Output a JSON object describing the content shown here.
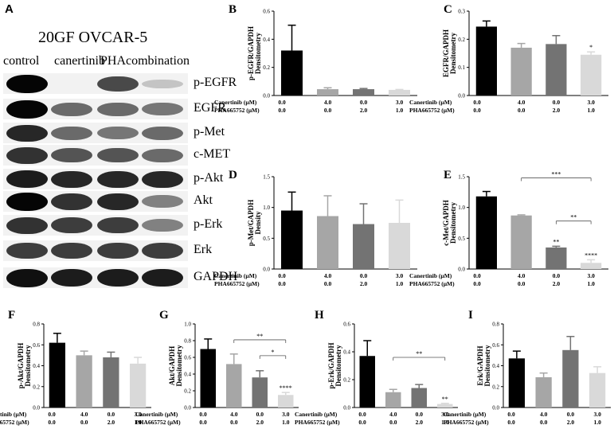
{
  "blot": {
    "letter": "A",
    "title": "20GF OVCAR-5",
    "lanes": [
      "control",
      "canertinib",
      "PHA",
      "combination"
    ],
    "rows": [
      {
        "label": "p-EGFR",
        "intensity": [
          1.0,
          0.0,
          0.7,
          0.15
        ]
      },
      {
        "label": "EGFR",
        "intensity": [
          1.0,
          0.55,
          0.55,
          0.5
        ]
      },
      {
        "label": "p-Met",
        "intensity": [
          0.85,
          0.55,
          0.5,
          0.55
        ]
      },
      {
        "label": "c-MET",
        "intensity": [
          0.8,
          0.65,
          0.65,
          0.55
        ]
      },
      {
        "label": "p-Akt",
        "intensity": [
          0.9,
          0.85,
          0.85,
          0.85
        ]
      },
      {
        "label": "Akt",
        "intensity": [
          1.0,
          0.8,
          0.85,
          0.45
        ]
      },
      {
        "label": "p-Erk",
        "intensity": [
          0.8,
          0.75,
          0.75,
          0.45
        ]
      },
      {
        "label": "Erk",
        "intensity": [
          0.75,
          0.75,
          0.75,
          0.75
        ]
      },
      {
        "label": "GAPDH",
        "intensity": [
          0.95,
          0.9,
          0.9,
          0.9
        ]
      }
    ]
  },
  "colors": [
    "#000000",
    "#a6a6a6",
    "#737373",
    "#d9d9d9"
  ],
  "conditions": {
    "row1_label": "Canertinib  (µM)",
    "row2_label": "PHA665752 (µM)",
    "row1_values": [
      "0.0",
      "4.0",
      "0.0",
      "3.0"
    ],
    "row2_values": [
      "0.0",
      "0.0",
      "2.0",
      "1.0"
    ]
  },
  "chart_data": [
    {
      "letter": "B",
      "type": "bar",
      "ylabel": "p-EGFR/GAPDH Densitometry",
      "ylim": [
        0,
        0.6
      ],
      "yticks": [
        "0.0",
        "0.2",
        "0.4",
        "0.6"
      ],
      "values": [
        0.32,
        0.045,
        0.045,
        0.04
      ],
      "errors": [
        0.18,
        0.01,
        0.005,
        0.003
      ],
      "sig": [],
      "brackets": []
    },
    {
      "letter": "C",
      "type": "bar",
      "ylabel": "EGFR/GAPDH Densitometry",
      "ylim": [
        0,
        0.3
      ],
      "yticks": [
        "0.0",
        "0.1",
        "0.2",
        "0.3"
      ],
      "values": [
        0.245,
        0.17,
        0.183,
        0.145
      ],
      "errors": [
        0.02,
        0.015,
        0.03,
        0.01
      ],
      "sig": [
        {
          "bar": 3,
          "text": "*"
        }
      ],
      "brackets": []
    },
    {
      "letter": "D",
      "type": "bar",
      "ylabel": "p-Met/GAPDH Density",
      "ylim": [
        0,
        1.5
      ],
      "yticks": [
        "0.0",
        "0.5",
        "1.0",
        "1.5"
      ],
      "values": [
        0.95,
        0.86,
        0.73,
        0.75
      ],
      "errors": [
        0.3,
        0.33,
        0.33,
        0.37
      ],
      "sig": [],
      "brackets": []
    },
    {
      "letter": "E",
      "type": "bar",
      "ylabel": "c-Met/GAPDH Densitometry",
      "ylim": [
        0,
        1.5
      ],
      "yticks": [
        "0.0",
        "0.5",
        "1.0",
        "1.5"
      ],
      "values": [
        1.18,
        0.87,
        0.35,
        0.1
      ],
      "errors": [
        0.08,
        0.01,
        0.02,
        0.05
      ],
      "sig": [
        {
          "bar": 2,
          "text": "**"
        },
        {
          "bar": 3,
          "text": "****"
        }
      ],
      "brackets": [
        {
          "from": 1,
          "to": 3,
          "y": 1.48,
          "text": "***"
        },
        {
          "from": 2,
          "to": 3,
          "y": 0.78,
          "text": "**"
        }
      ]
    },
    {
      "letter": "F",
      "type": "bar",
      "ylabel": "p-Akt/GAPDH Densitometry",
      "ylim": [
        0,
        0.8
      ],
      "yticks": [
        "0.0",
        "0.2",
        "0.4",
        "0.6",
        "0.8"
      ],
      "values": [
        0.62,
        0.5,
        0.48,
        0.42
      ],
      "errors": [
        0.09,
        0.04,
        0.05,
        0.06
      ],
      "sig": [],
      "brackets": []
    },
    {
      "letter": "G",
      "type": "bar",
      "ylabel": "Akt/GAPDH Densitometry",
      "ylim": [
        0,
        1.0
      ],
      "yticks": [
        "0.0",
        "0.2",
        "0.4",
        "0.6",
        "0.8",
        "1.0"
      ],
      "values": [
        0.7,
        0.52,
        0.36,
        0.15
      ],
      "errors": [
        0.12,
        0.12,
        0.08,
        0.03
      ],
      "sig": [
        {
          "bar": 3,
          "text": "****"
        }
      ],
      "brackets": [
        {
          "from": 1,
          "to": 3,
          "y": 0.81,
          "text": "**"
        },
        {
          "from": 2,
          "to": 3,
          "y": 0.62,
          "text": "*"
        }
      ]
    },
    {
      "letter": "H",
      "type": "bar",
      "ylabel": "p-Erk/GAPDH Densitometry",
      "ylim": [
        0,
        0.6
      ],
      "yticks": [
        "0.0",
        "0.2",
        "0.4",
        "0.6"
      ],
      "values": [
        0.37,
        0.11,
        0.14,
        0.025
      ],
      "errors": [
        0.11,
        0.02,
        0.025,
        0.005
      ],
      "sig": [
        {
          "bar": 3,
          "text": "**"
        }
      ],
      "brackets": [
        {
          "from": 1,
          "to": 3,
          "y": 0.36,
          "text": "**"
        }
      ]
    },
    {
      "letter": "I",
      "type": "bar",
      "ylabel": "Erk/GAPDH Densitometry",
      "ylim": [
        0,
        0.8
      ],
      "yticks": [
        "0.0",
        "0.2",
        "0.4",
        "0.6",
        "0.8"
      ],
      "values": [
        0.47,
        0.29,
        0.55,
        0.33
      ],
      "errors": [
        0.07,
        0.04,
        0.13,
        0.06
      ],
      "sig": [],
      "brackets": []
    }
  ]
}
